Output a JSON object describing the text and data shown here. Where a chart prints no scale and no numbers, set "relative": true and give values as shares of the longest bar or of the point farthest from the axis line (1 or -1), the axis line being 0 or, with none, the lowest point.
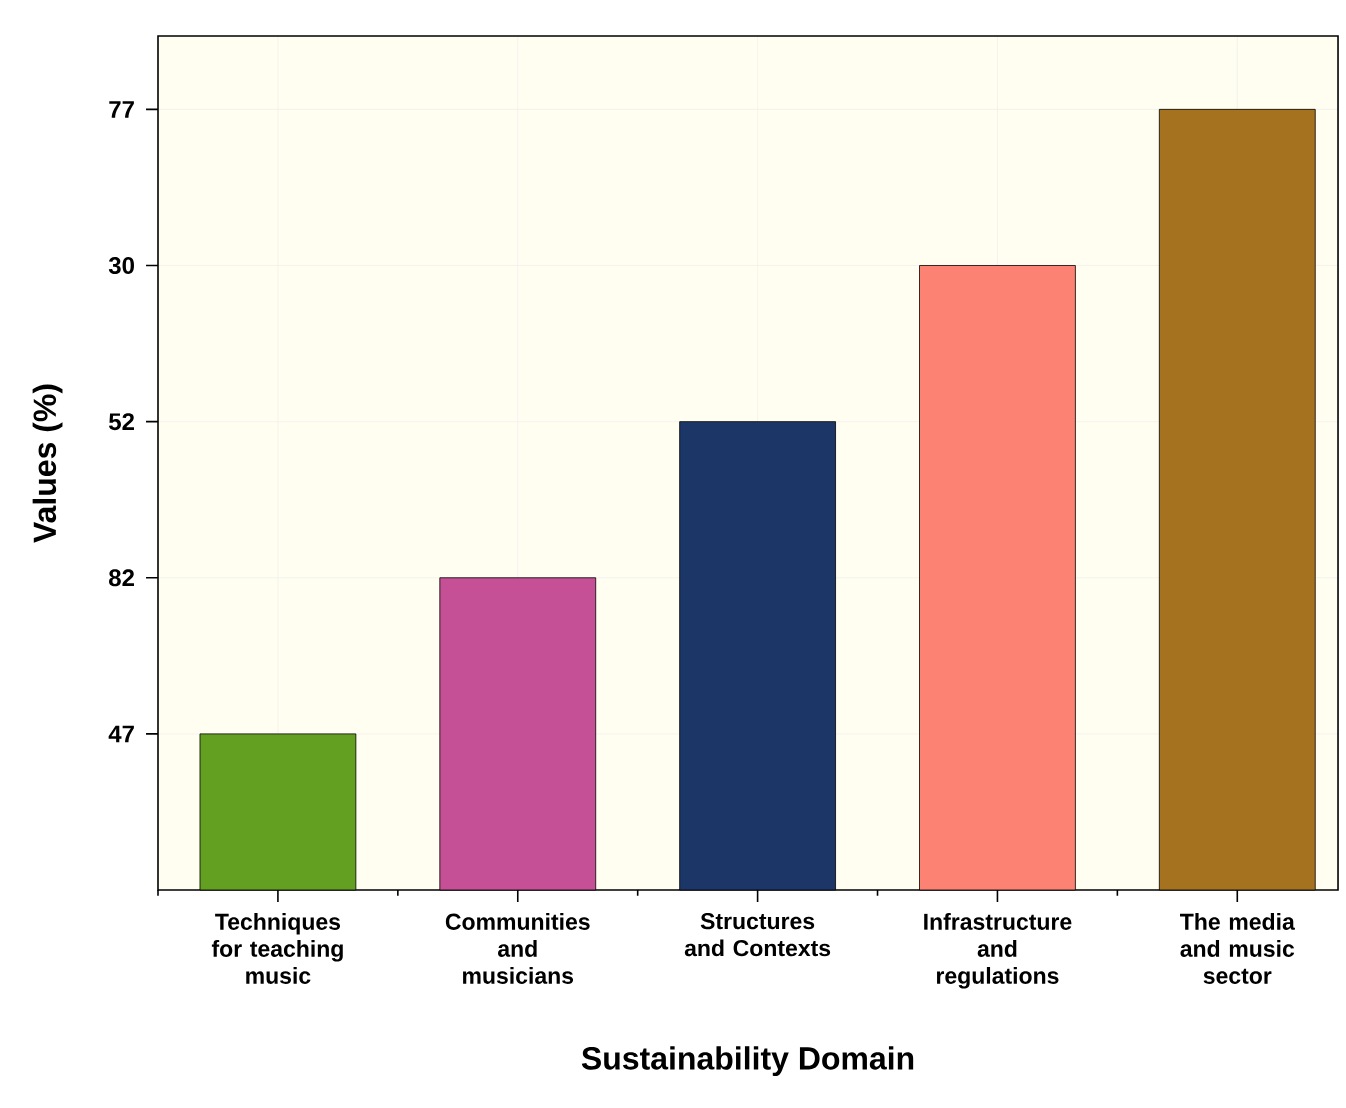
{
  "chart_data": {
    "type": "bar",
    "xlabel": "Sustainability Domain",
    "ylabel": "Values (%)",
    "categories": [
      "Techniques for teaching music",
      "Communities and musicians",
      "Structures and Contexts",
      "Infrastructure and regulations",
      "The media and music sector"
    ],
    "values": [
      0.2,
      0.4,
      0.6,
      0.8,
      1
    ],
    "colors": [
      "#63a022",
      "#c55096",
      "#1c3668",
      "#fc8274",
      "#a5731f"
    ],
    "relative": true,
    "annotations": [
      "47",
      "82",
      "52",
      "30",
      "77"
    ],
    "grid": true
  }
}
